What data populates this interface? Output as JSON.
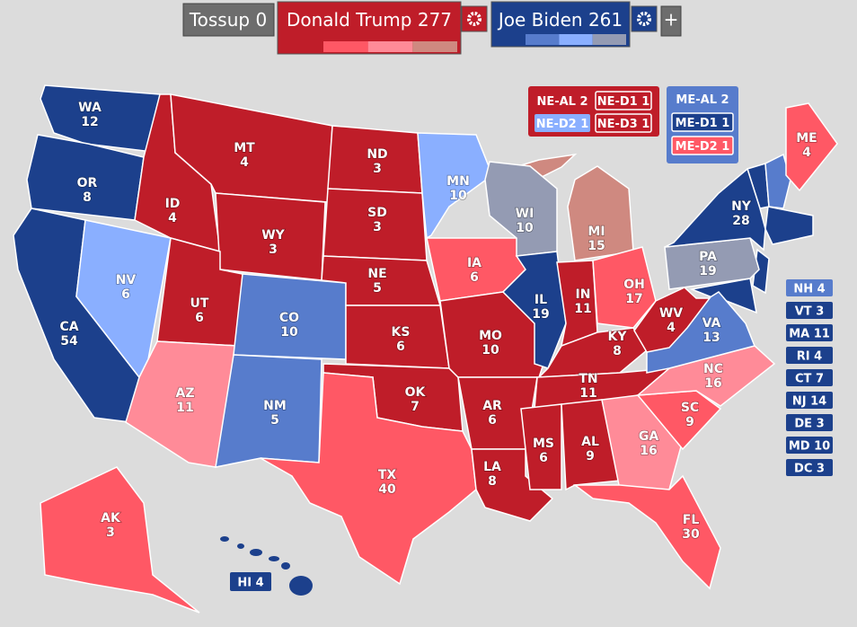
{
  "header": {
    "tossup": {
      "label": "Tossup",
      "votes": 0,
      "color": "#6d6d6d"
    },
    "candidates": [
      {
        "name": "Donald Trump",
        "votes": 277,
        "color": "#bf1d29",
        "shades": [
          "#ff5865",
          "#ff8b98",
          "#cf8980"
        ]
      },
      {
        "name": "Joe Biden",
        "votes": 261,
        "color": "#1c408c",
        "shades": [
          "#577ccc",
          "#8aafff",
          "#949bb3"
        ]
      }
    ],
    "add_button": "+"
  },
  "states": [
    {
      "abbr": "WA",
      "votes": 12,
      "color": "#1c408c"
    },
    {
      "abbr": "OR",
      "votes": 8,
      "color": "#1c408c"
    },
    {
      "abbr": "CA",
      "votes": 54,
      "color": "#1c408c"
    },
    {
      "abbr": "NV",
      "votes": 6,
      "color": "#8aafff"
    },
    {
      "abbr": "ID",
      "votes": 4,
      "color": "#bf1d29"
    },
    {
      "abbr": "MT",
      "votes": 4,
      "color": "#bf1d29"
    },
    {
      "abbr": "WY",
      "votes": 3,
      "color": "#bf1d29"
    },
    {
      "abbr": "UT",
      "votes": 6,
      "color": "#bf1d29"
    },
    {
      "abbr": "AZ",
      "votes": 11,
      "color": "#ff8b98"
    },
    {
      "abbr": "CO",
      "votes": 10,
      "color": "#577ccc"
    },
    {
      "abbr": "NM",
      "votes": 5,
      "color": "#577ccc"
    },
    {
      "abbr": "ND",
      "votes": 3,
      "color": "#bf1d29"
    },
    {
      "abbr": "SD",
      "votes": 3,
      "color": "#bf1d29"
    },
    {
      "abbr": "NE",
      "votes": 5,
      "color": "#bf1d29"
    },
    {
      "abbr": "KS",
      "votes": 6,
      "color": "#bf1d29"
    },
    {
      "abbr": "OK",
      "votes": 7,
      "color": "#bf1d29"
    },
    {
      "abbr": "TX",
      "votes": 40,
      "color": "#ff5865"
    },
    {
      "abbr": "MN",
      "votes": 10,
      "color": "#8aafff"
    },
    {
      "abbr": "IA",
      "votes": 6,
      "color": "#ff5865"
    },
    {
      "abbr": "MO",
      "votes": 10,
      "color": "#bf1d29"
    },
    {
      "abbr": "AR",
      "votes": 6,
      "color": "#bf1d29"
    },
    {
      "abbr": "LA",
      "votes": 8,
      "color": "#bf1d29"
    },
    {
      "abbr": "WI",
      "votes": 10,
      "color": "#949bb3"
    },
    {
      "abbr": "IL",
      "votes": 19,
      "color": "#1c408c"
    },
    {
      "abbr": "MI",
      "votes": 15,
      "color": "#cf8980"
    },
    {
      "abbr": "IN",
      "votes": 11,
      "color": "#bf1d29"
    },
    {
      "abbr": "OH",
      "votes": 17,
      "color": "#ff5865"
    },
    {
      "abbr": "KY",
      "votes": 8,
      "color": "#bf1d29"
    },
    {
      "abbr": "TN",
      "votes": 11,
      "color": "#bf1d29"
    },
    {
      "abbr": "MS",
      "votes": 6,
      "color": "#bf1d29"
    },
    {
      "abbr": "AL",
      "votes": 9,
      "color": "#bf1d29"
    },
    {
      "abbr": "GA",
      "votes": 16,
      "color": "#ff8b98"
    },
    {
      "abbr": "FL",
      "votes": 30,
      "color": "#ff5865"
    },
    {
      "abbr": "SC",
      "votes": 9,
      "color": "#ff5865"
    },
    {
      "abbr": "NC",
      "votes": 16,
      "color": "#ff8b98"
    },
    {
      "abbr": "VA",
      "votes": 13,
      "color": "#577ccc"
    },
    {
      "abbr": "WV",
      "votes": 4,
      "color": "#bf1d29"
    },
    {
      "abbr": "PA",
      "votes": 19,
      "color": "#949bb3"
    },
    {
      "abbr": "NY",
      "votes": 28,
      "color": "#1c408c"
    },
    {
      "abbr": "ME",
      "votes": 4,
      "color": "#ff5865"
    },
    {
      "abbr": "AK",
      "votes": 3,
      "color": "#ff5865"
    }
  ],
  "small_states": [
    {
      "abbr": "NH",
      "votes": 4,
      "color": "#577ccc"
    },
    {
      "abbr": "VT",
      "votes": 3,
      "color": "#1c408c"
    },
    {
      "abbr": "MA",
      "votes": 11,
      "color": "#1c408c"
    },
    {
      "abbr": "RI",
      "votes": 4,
      "color": "#1c408c"
    },
    {
      "abbr": "CT",
      "votes": 7,
      "color": "#1c408c"
    },
    {
      "abbr": "NJ",
      "votes": 14,
      "color": "#1c408c"
    },
    {
      "abbr": "DE",
      "votes": 3,
      "color": "#1c408c"
    },
    {
      "abbr": "MD",
      "votes": 10,
      "color": "#1c408c"
    },
    {
      "abbr": "DC",
      "votes": 3,
      "color": "#1c408c"
    }
  ],
  "hawaii": {
    "abbr": "HI",
    "votes": 4,
    "color": "#1c408c"
  },
  "districts": {
    "nebraska": {
      "color": "#bf1d29",
      "items": [
        {
          "abbr": "NE-AL",
          "votes": 2,
          "color": "#bf1d29"
        },
        {
          "abbr": "NE-D1",
          "votes": 1,
          "color": "#bf1d29"
        },
        {
          "abbr": "NE-D2",
          "votes": 1,
          "color": "#8aafff"
        },
        {
          "abbr": "NE-D3",
          "votes": 1,
          "color": "#bf1d29"
        }
      ]
    },
    "maine": {
      "color": "#577ccc",
      "items": [
        {
          "abbr": "ME-AL",
          "votes": 2,
          "color": "#577ccc"
        },
        {
          "abbr": "ME-D1",
          "votes": 1,
          "color": "#1c408c"
        },
        {
          "abbr": "ME-D2",
          "votes": 1,
          "color": "#ff5865"
        }
      ]
    }
  }
}
